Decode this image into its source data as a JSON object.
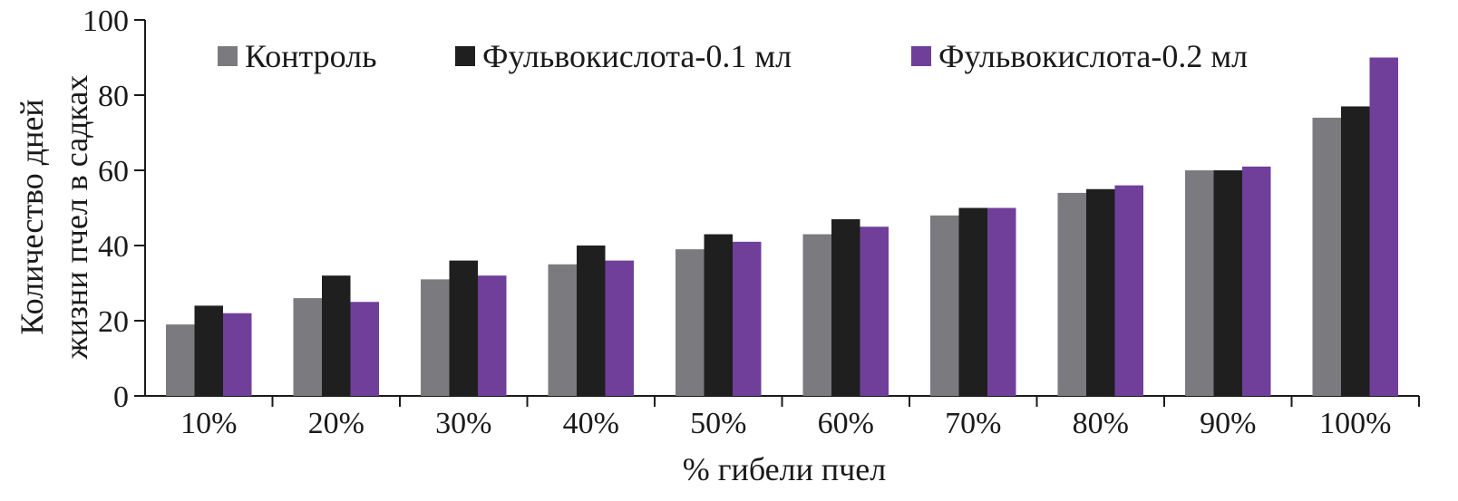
{
  "chart_data": {
    "type": "bar",
    "categories": [
      "10%",
      "20%",
      "30%",
      "40%",
      "50%",
      "60%",
      "70%",
      "80%",
      "90%",
      "100%"
    ],
    "series": [
      {
        "name": "Контроль",
        "color": "#7b7b7f",
        "values": [
          19,
          26,
          31,
          35,
          39,
          43,
          48,
          54,
          60,
          74
        ]
      },
      {
        "name": "Фульвокислота-0.1 мл",
        "color": "#1f1f1f",
        "values": [
          24,
          32,
          36,
          40,
          43,
          47,
          50,
          55,
          60,
          77
        ]
      },
      {
        "name": "Фульвокислота-0.2 мл",
        "color": "#6f3f9a",
        "values": [
          22,
          25,
          32,
          36,
          41,
          45,
          50,
          56,
          61,
          90
        ]
      }
    ],
    "xlabel": "% гибели пчел",
    "ylabel_lines": [
      "Количество дней",
      "жизни пчел в садках"
    ],
    "ylim": [
      0,
      100
    ],
    "yticks": [
      0,
      20,
      40,
      60,
      80,
      100
    ],
    "legend_position": "top",
    "grid": false
  }
}
